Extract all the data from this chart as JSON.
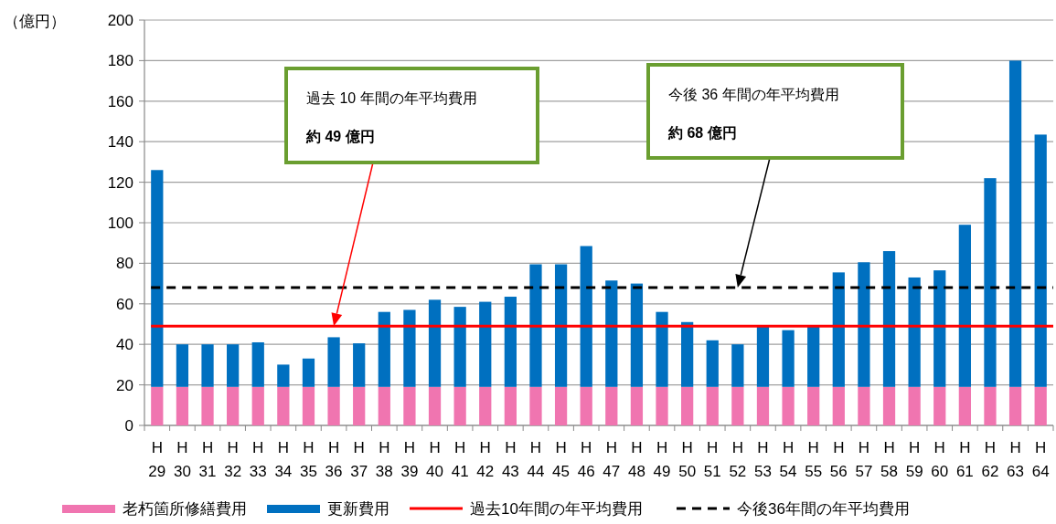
{
  "chart_data": {
    "type": "bar",
    "stacked": true,
    "ylabel": "（億円）",
    "categories": [
      "H 29",
      "H 30",
      "H 31",
      "H 32",
      "H 33",
      "H 34",
      "H 35",
      "H 36",
      "H 37",
      "H 38",
      "H 39",
      "H 40",
      "H 41",
      "H 42",
      "H 43",
      "H 44",
      "H 45",
      "H 46",
      "H 47",
      "H 48",
      "H 49",
      "H 50",
      "H 51",
      "H 52",
      "H 53",
      "H 54",
      "H 55",
      "H 56",
      "H 57",
      "H 58",
      "H 59",
      "H 60",
      "H 61",
      "H 62",
      "H 63",
      "H 64"
    ],
    "series": [
      {
        "name": "老朽箇所修繕費用",
        "color": "#f075b0",
        "values": [
          19,
          19,
          19,
          19,
          19,
          19,
          19,
          19,
          19,
          19,
          19,
          19,
          19,
          19,
          19,
          19,
          19,
          19,
          19,
          19,
          19,
          19,
          19,
          19,
          19,
          19,
          19,
          19,
          19,
          19,
          19,
          19,
          19,
          19,
          19,
          19
        ]
      },
      {
        "name": "更新費用",
        "color": "#0070c0",
        "values": [
          107,
          21,
          21,
          21,
          22,
          11,
          14,
          24.5,
          21.5,
          37,
          38,
          43,
          39.5,
          42,
          44.5,
          60.5,
          60.5,
          69.5,
          52.5,
          51,
          37,
          32,
          23,
          21,
          30.5,
          28,
          30.5,
          56.5,
          61.5,
          67,
          54,
          57.5,
          80,
          103,
          161,
          124.5
        ]
      }
    ],
    "ylim": [
      0,
      200
    ],
    "yticks": [
      0,
      20,
      40,
      60,
      80,
      100,
      120,
      140,
      160,
      180,
      200
    ],
    "grid": "y",
    "legend": "bottom",
    "ref_lines": [
      {
        "axis": "y",
        "value": 49,
        "label": "過去10年間の年平均費用",
        "color": "#ff0000",
        "line_style": "solid"
      },
      {
        "axis": "y",
        "value": 68,
        "label": "今後36年間の年平均費用",
        "color": "#000000",
        "line_style": "dashed"
      }
    ],
    "annotations": [
      "過去 10 年間の年平均費用",
      "約 49 億円",
      "今後 36 年間の年平均費用",
      "約 68 億円"
    ]
  }
}
